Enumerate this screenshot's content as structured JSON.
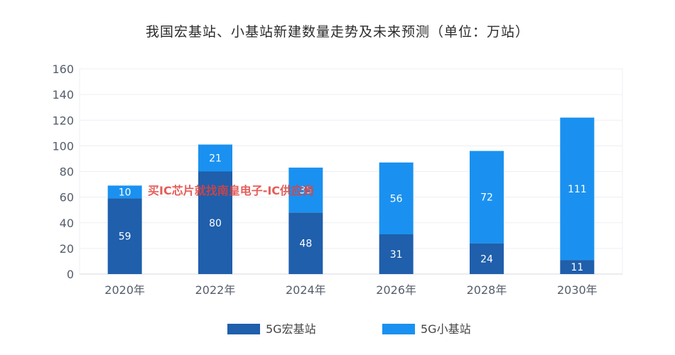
{
  "chart_data": {
    "type": "bar",
    "stacked": true,
    "title": "我国宏基站、小基站新建数量走势及未来预测（单位：万站）",
    "categories": [
      "2020年",
      "2022年",
      "2024年",
      "2026年",
      "2028年",
      "2030年"
    ],
    "series": [
      {
        "name": "5G宏基站",
        "color": "#1f5fac",
        "values": [
          59,
          80,
          48,
          31,
          24,
          11
        ]
      },
      {
        "name": "5G小基站",
        "color": "#1a91f0",
        "values": [
          10,
          21,
          35,
          56,
          72,
          111
        ]
      }
    ],
    "ylim": [
      0,
      160
    ],
    "yticks": [
      0,
      20,
      40,
      60,
      80,
      100,
      120,
      140,
      160
    ],
    "grid": true,
    "legend_position": "bottom"
  },
  "watermark": "买IC芯片就找南皇电子-IC供应商"
}
